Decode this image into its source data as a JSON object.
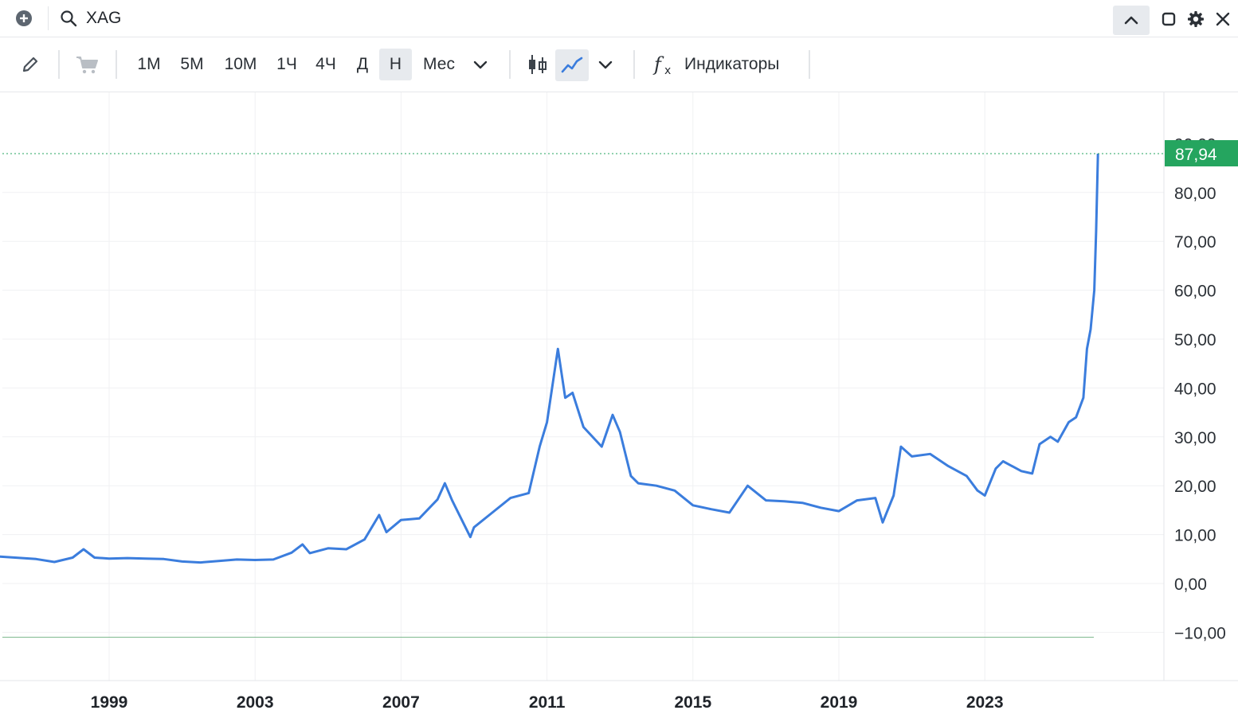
{
  "header": {
    "symbol": "XAG",
    "icons": [
      "add-icon",
      "search-icon",
      "chevron-up-icon",
      "restore-window-icon",
      "gear-icon",
      "close-icon"
    ]
  },
  "toolbar": {
    "timeframes": [
      "1М",
      "5М",
      "10М",
      "1Ч",
      "4Ч",
      "Д",
      "Н",
      "Мес"
    ],
    "active_timeframe": "Н",
    "indicators_label": "Индикаторы"
  },
  "colors": {
    "line": "#3b7ddd",
    "price_badge": "#25a55f",
    "grid": "#eef0f2"
  },
  "chart_data": {
    "type": "line",
    "title": "",
    "xlabel": "",
    "ylabel": "",
    "x_ticks": [
      "1999",
      "2003",
      "2007",
      "2011",
      "2015",
      "2019",
      "2023"
    ],
    "y_ticks": [
      "−10,00",
      "0,00",
      "10,00",
      "20,00",
      "30,00",
      "40,00",
      "50,00",
      "60,00",
      "70,00",
      "80,00"
    ],
    "y_top_partial": "90,00",
    "ylim": [
      -20,
      100
    ],
    "xlim": [
      1996.0,
      2027.9
    ],
    "grid": true,
    "last_price": 87.94,
    "last_price_label": "87,94",
    "series": [
      {
        "x": [
          1996.0,
          1997.0,
          1997.5,
          1998.0,
          1998.3,
          1998.6,
          1999.0,
          1999.5,
          2000.0,
          2000.5,
          2001.0,
          2001.5,
          2002.0,
          2002.5,
          2003.0,
          2003.5,
          2004.0,
          2004.3,
          2004.5,
          2005.0,
          2005.5,
          2006.0,
          2006.4,
          2006.6,
          2007.0,
          2007.5,
          2008.0,
          2008.2,
          2008.4,
          2008.9,
          2009.0,
          2009.5,
          2010.0,
          2010.5,
          2010.8,
          2011.0,
          2011.3,
          2011.5,
          2011.7,
          2012.0,
          2012.5,
          2012.8,
          2013.0,
          2013.3,
          2013.5,
          2014.0,
          2014.5,
          2015.0,
          2015.5,
          2016.0,
          2016.5,
          2017.0,
          2017.5,
          2018.0,
          2018.5,
          2019.0,
          2019.5,
          2020.0,
          2020.2,
          2020.5,
          2020.7,
          2021.0,
          2021.5,
          2022.0,
          2022.5,
          2022.8,
          2023.0,
          2023.3,
          2023.5,
          2024.0,
          2024.3,
          2024.5,
          2024.8,
          2025.0,
          2025.3,
          2025.5,
          2025.7,
          2025.8,
          2025.9,
          2026.0,
          2026.05,
          2026.1
        ],
        "y": [
          5.5,
          5.0,
          4.4,
          5.3,
          7.0,
          5.3,
          5.1,
          5.2,
          5.1,
          5.0,
          4.5,
          4.3,
          4.6,
          4.9,
          4.8,
          4.9,
          6.3,
          8.0,
          6.2,
          7.2,
          7.0,
          9.0,
          14.0,
          10.5,
          13.0,
          13.3,
          17.2,
          20.5,
          17.0,
          9.5,
          11.5,
          14.5,
          17.5,
          18.5,
          28.0,
          33.0,
          48.0,
          38.0,
          39.0,
          32.0,
          28.0,
          34.5,
          31.0,
          22.0,
          20.5,
          20.0,
          19.0,
          16.0,
          15.2,
          14.5,
          20.0,
          17.0,
          16.8,
          16.5,
          15.5,
          14.8,
          17.0,
          17.5,
          12.5,
          18.0,
          28.0,
          26.0,
          26.5,
          24.0,
          22.0,
          19.0,
          18.0,
          23.5,
          25.0,
          23.0,
          22.5,
          28.5,
          30.0,
          29.0,
          33.0,
          34.0,
          38.0,
          48.0,
          52.0,
          60.0,
          72.0,
          87.94
        ]
      }
    ]
  }
}
